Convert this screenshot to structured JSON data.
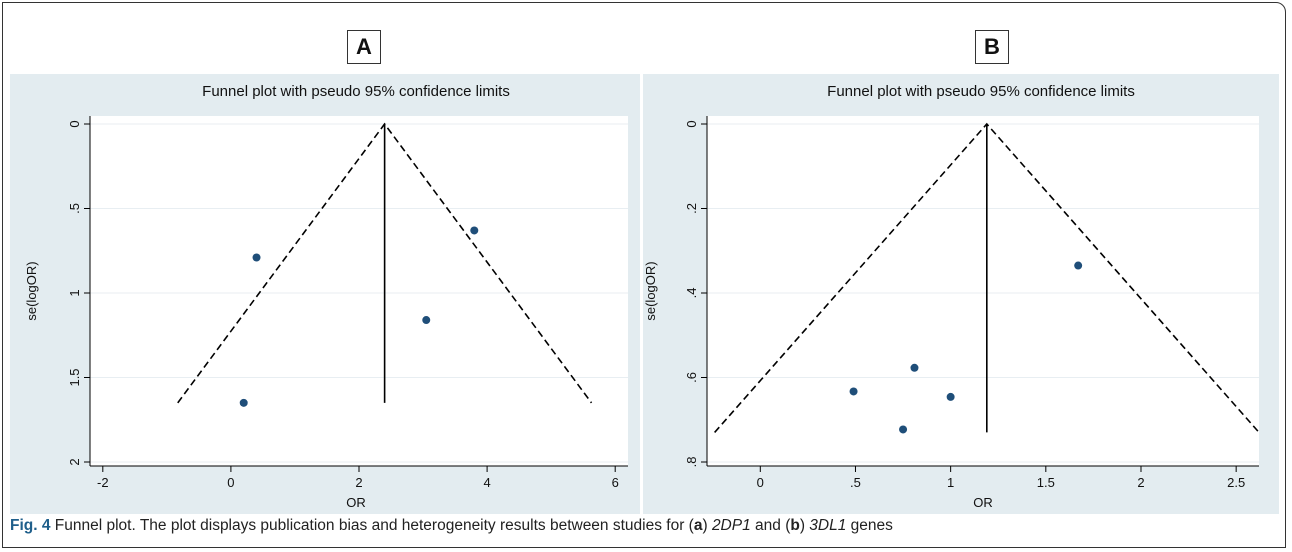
{
  "caption": {
    "fig_label": "Fig. 4",
    "text1": " Funnel plot. The plot displays publication bias and heterogeneity results between studies for (",
    "letter_a": "a",
    "text2": ") ",
    "gene_a": "2DP1",
    "text3": " and (",
    "letter_b": "b",
    "text4": ") ",
    "gene_b": "3DL1",
    "text5": " genes"
  },
  "colors": {
    "panel_background": "#e3ecf0",
    "plot_background": "#ffffff",
    "marker": "#1f4e79",
    "line": "#000000"
  },
  "chart_data": [
    {
      "panel_label": "A",
      "type": "scatter",
      "title": "Funnel plot with pseudo 95% confidence limits",
      "xlabel": "OR",
      "ylabel": "se(logOR)",
      "xlim": [
        -2.2,
        6.2
      ],
      "ylim": [
        0,
        2
      ],
      "y_reversed": true,
      "x_ticks": [
        -2,
        0,
        2,
        4,
        6
      ],
      "x_tick_labels": [
        "-2",
        "0",
        "2",
        "4",
        "6"
      ],
      "y_ticks": [
        0,
        0.5,
        1,
        1.5,
        2
      ],
      "y_tick_labels": [
        "0",
        ".5",
        "1",
        "1.5",
        "2"
      ],
      "grid": true,
      "pooled_estimate": 2.4,
      "max_se": 1.65,
      "ci_lines": [
        [
          -0.83,
          1.65
        ],
        [
          2.4,
          0
        ],
        [
          5.63,
          1.65
        ]
      ],
      "points": [
        {
          "x": 0.4,
          "y": 0.79
        },
        {
          "x": 3.8,
          "y": 0.63
        },
        {
          "x": 3.05,
          "y": 1.16
        },
        {
          "x": 0.2,
          "y": 1.65
        }
      ]
    },
    {
      "panel_label": "B",
      "type": "scatter",
      "title": "Funnel plot with pseudo 95% confidence limits",
      "xlabel": "OR",
      "ylabel": "se(logOR)",
      "xlim": [
        -0.28,
        2.62
      ],
      "ylim": [
        0,
        0.8
      ],
      "y_reversed": true,
      "x_ticks": [
        0,
        0.5,
        1,
        1.5,
        2,
        2.5
      ],
      "x_tick_labels": [
        "0",
        ".5",
        "1",
        "1.5",
        "2",
        "2.5"
      ],
      "y_ticks": [
        0,
        0.2,
        0.4,
        0.6,
        0.8
      ],
      "y_tick_labels": [
        "0",
        ".2",
        ".4",
        ".6",
        ".8"
      ],
      "grid": true,
      "pooled_estimate": 1.19,
      "max_se": 0.73,
      "ci_lines": [
        [
          -0.24,
          0.73
        ],
        [
          1.19,
          0
        ],
        [
          2.62,
          0.73
        ]
      ],
      "points": [
        {
          "x": 1.67,
          "y": 0.335
        },
        {
          "x": 0.81,
          "y": 0.577
        },
        {
          "x": 0.49,
          "y": 0.633
        },
        {
          "x": 1.0,
          "y": 0.646
        },
        {
          "x": 0.75,
          "y": 0.723
        }
      ]
    }
  ]
}
